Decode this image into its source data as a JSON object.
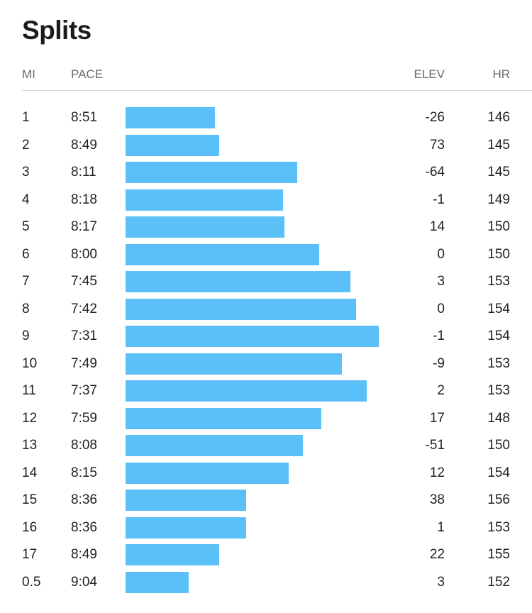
{
  "title": "Splits",
  "headers": {
    "mi": "MI",
    "pace": "PACE",
    "elev": "ELEV",
    "hr": "HR"
  },
  "bar_color": "#5bc0f8",
  "chart_data": {
    "type": "bar",
    "orientation": "horizontal",
    "series": [
      {
        "values_seconds": [
          531,
          529,
          491,
          498,
          497,
          480,
          465,
          462,
          451,
          469,
          457,
          479,
          488,
          495,
          516,
          516,
          529,
          544
        ]
      }
    ]
  },
  "splits": [
    {
      "mi": "1",
      "pace": "8:51",
      "elev": "-26",
      "hr": "146"
    },
    {
      "mi": "2",
      "pace": "8:49",
      "elev": "73",
      "hr": "145"
    },
    {
      "mi": "3",
      "pace": "8:11",
      "elev": "-64",
      "hr": "145"
    },
    {
      "mi": "4",
      "pace": "8:18",
      "elev": "-1",
      "hr": "149"
    },
    {
      "mi": "5",
      "pace": "8:17",
      "elev": "14",
      "hr": "150"
    },
    {
      "mi": "6",
      "pace": "8:00",
      "elev": "0",
      "hr": "150"
    },
    {
      "mi": "7",
      "pace": "7:45",
      "elev": "3",
      "hr": "153"
    },
    {
      "mi": "8",
      "pace": "7:42",
      "elev": "0",
      "hr": "154"
    },
    {
      "mi": "9",
      "pace": "7:31",
      "elev": "-1",
      "hr": "154"
    },
    {
      "mi": "10",
      "pace": "7:49",
      "elev": "-9",
      "hr": "153"
    },
    {
      "mi": "11",
      "pace": "7:37",
      "elev": "2",
      "hr": "153"
    },
    {
      "mi": "12",
      "pace": "7:59",
      "elev": "17",
      "hr": "148"
    },
    {
      "mi": "13",
      "pace": "8:08",
      "elev": "-51",
      "hr": "150"
    },
    {
      "mi": "14",
      "pace": "8:15",
      "elev": "12",
      "hr": "154"
    },
    {
      "mi": "15",
      "pace": "8:36",
      "elev": "38",
      "hr": "156"
    },
    {
      "mi": "16",
      "pace": "8:36",
      "elev": "1",
      "hr": "153"
    },
    {
      "mi": "17",
      "pace": "8:49",
      "elev": "22",
      "hr": "155"
    },
    {
      "mi": "0.5",
      "pace": "9:04",
      "elev": "3",
      "hr": "152"
    }
  ]
}
